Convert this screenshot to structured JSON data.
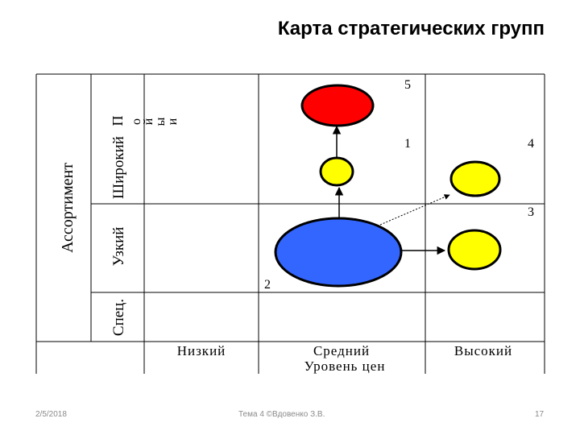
{
  "slide": {
    "title": "Карта стратегических групп",
    "footer_date": "2/5/2018",
    "footer_center": "Тема 4   ©Вдовенко З.В.",
    "footer_page": "17"
  },
  "diagram": {
    "y_axis_title": "Ассортимент",
    "y_categories": [
      "Широкий",
      "Узкий",
      "Спец."
    ],
    "y_subtitle_letters": [
      "П",
      "о",
      "й",
      "ы",
      "и"
    ],
    "x_categories": [
      "Низкий",
      "Средний",
      "Высокий"
    ],
    "x_axis_title": "Уровень цен",
    "group_labels": [
      "5",
      "1",
      "4",
      "3",
      "2"
    ],
    "colors": {
      "red": "#ff0000",
      "yellow": "#ffff00",
      "blue": "#3366ff",
      "outline": "#000000"
    }
  }
}
